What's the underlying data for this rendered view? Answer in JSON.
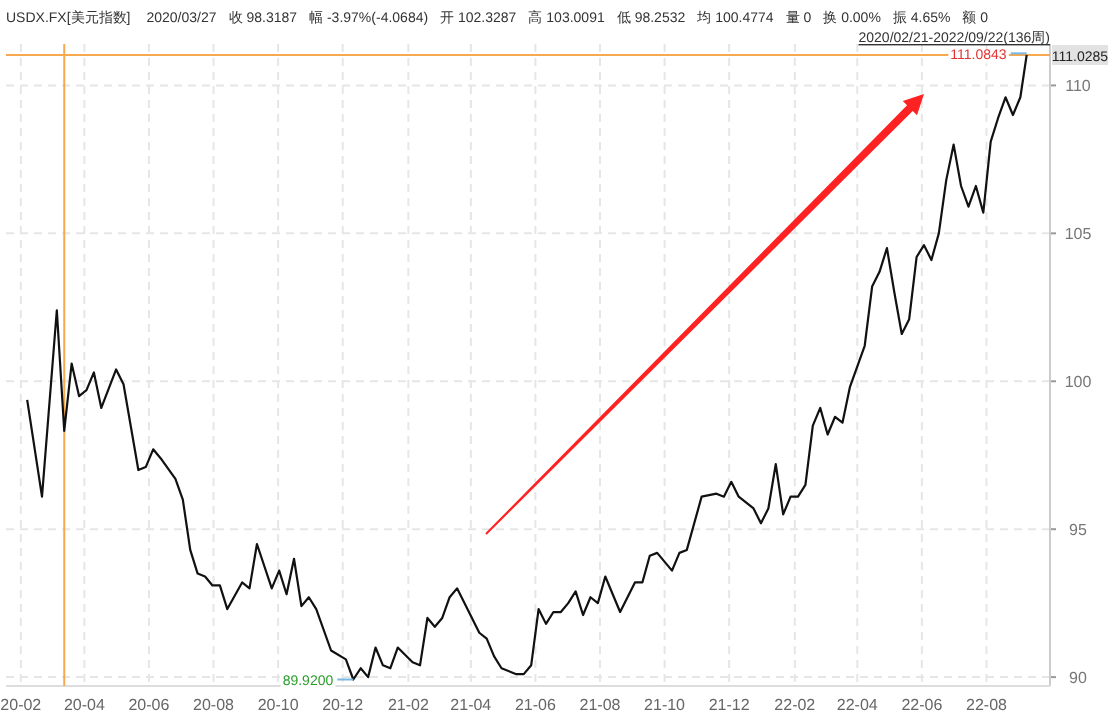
{
  "chart_data": {
    "type": "line",
    "title": "USDX.FX[美元指数]",
    "subtitle": "2020/02/21-2022/09/22(136周)",
    "annotations": [
      "2020/03/27",
      "收 98.3187",
      "幅 -3.97%(-4.0684)",
      "开 102.3287",
      "高 103.0091",
      "低 98.2532",
      "均 100.4774",
      "量 0",
      "换 0.00%",
      "振 4.65%",
      "额 0",
      {
        "text": "111.0843",
        "x": "2022-09-22",
        "y": 111.0843
      },
      {
        "text": "89.9200",
        "x": "2020-12-25",
        "y": 89.92
      }
    ],
    "series": [
      {
        "color": "#111111",
        "x": [
          "2020-02-21",
          "2020-03-06",
          "2020-03-20",
          "2020-03-27",
          "2020-04-03",
          "2020-04-10",
          "2020-04-17",
          "2020-04-24",
          "2020-05-01",
          "2020-05-15",
          "2020-05-22",
          "2020-06-05",
          "2020-06-12",
          "2020-06-19",
          "2020-06-26",
          "2020-07-10",
          "2020-07-17",
          "2020-07-24",
          "2020-07-31",
          "2020-08-07",
          "2020-08-14",
          "2020-08-21",
          "2020-08-28",
          "2020-09-11",
          "2020-09-18",
          "2020-09-25",
          "2020-10-09",
          "2020-10-16",
          "2020-10-23",
          "2020-10-30",
          "2020-11-06",
          "2020-11-13",
          "2020-11-20",
          "2020-12-04",
          "2020-12-18",
          "2020-12-25",
          "2021-01-01",
          "2021-01-08",
          "2021-01-15",
          "2021-01-22",
          "2021-01-29",
          "2021-02-05",
          "2021-02-19",
          "2021-02-26",
          "2021-03-05",
          "2021-03-12",
          "2021-03-19",
          "2021-03-26",
          "2021-04-02",
          "2021-04-23",
          "2021-04-30",
          "2021-05-07",
          "2021-05-14",
          "2021-05-28",
          "2021-06-04",
          "2021-06-11",
          "2021-06-18",
          "2021-06-25",
          "2021-07-02",
          "2021-07-09",
          "2021-07-16",
          "2021-07-23",
          "2021-07-30",
          "2021-08-06",
          "2021-08-13",
          "2021-08-20",
          "2021-09-03",
          "2021-09-17",
          "2021-09-24",
          "2021-10-01",
          "2021-10-08",
          "2021-10-22",
          "2021-10-29",
          "2021-11-05",
          "2021-11-19",
          "2021-12-03",
          "2021-12-10",
          "2021-12-17",
          "2021-12-24",
          "2022-01-07",
          "2022-01-14",
          "2022-01-21",
          "2022-01-28",
          "2022-02-04",
          "2022-02-11",
          "2022-02-18",
          "2022-02-25",
          "2022-03-04",
          "2022-03-11",
          "2022-03-18",
          "2022-03-25",
          "2022-04-01",
          "2022-04-08",
          "2022-04-22",
          "2022-04-29",
          "2022-05-06",
          "2022-05-13",
          "2022-05-20",
          "2022-05-27",
          "2022-06-03",
          "2022-06-10",
          "2022-06-17",
          "2022-06-24",
          "2022-07-01",
          "2022-07-08",
          "2022-07-15",
          "2022-07-22",
          "2022-07-29",
          "2022-08-05",
          "2022-08-12",
          "2022-08-19",
          "2022-08-26",
          "2022-09-02",
          "2022-09-09",
          "2022-09-16",
          "2022-09-22"
        ],
        "values": [
          99.37,
          96.1,
          102.4,
          98.32,
          100.6,
          99.5,
          99.7,
          100.3,
          99.1,
          100.4,
          99.9,
          97.0,
          97.1,
          97.7,
          97.4,
          96.7,
          96.0,
          94.3,
          93.5,
          93.4,
          93.1,
          93.1,
          92.3,
          93.2,
          93.0,
          94.5,
          93.0,
          93.6,
          92.8,
          94.0,
          92.4,
          92.7,
          92.3,
          90.9,
          90.6,
          89.92,
          90.3,
          90.0,
          91.0,
          90.4,
          90.3,
          91.0,
          90.5,
          90.4,
          92.0,
          91.7,
          92.0,
          92.7,
          93.0,
          91.5,
          91.3,
          90.7,
          90.3,
          90.1,
          90.1,
          90.4,
          92.3,
          91.8,
          92.2,
          92.2,
          92.5,
          92.9,
          92.1,
          92.7,
          92.5,
          93.4,
          92.2,
          93.2,
          93.2,
          94.1,
          94.2,
          93.6,
          94.2,
          94.3,
          96.1,
          96.2,
          96.1,
          96.6,
          96.1,
          95.7,
          95.2,
          95.7,
          97.2,
          95.5,
          96.1,
          96.1,
          96.5,
          98.5,
          99.1,
          98.2,
          98.8,
          98.6,
          99.8,
          101.2,
          103.2,
          103.7,
          104.5,
          103.0,
          101.6,
          102.1,
          104.2,
          104.6,
          104.1,
          105.0,
          106.8,
          108.0,
          106.6,
          105.9,
          106.6,
          105.7,
          108.1,
          108.9,
          109.6,
          109.0,
          109.6,
          111.03
        ]
      }
    ],
    "xlim": [
      "2020-02-01",
      "2022-10-14"
    ],
    "xticks": [
      {
        "value": "2020-02-15",
        "label": "20-02"
      },
      {
        "value": "2020-04-15",
        "label": "20-04"
      },
      {
        "value": "2020-06-15",
        "label": "20-06"
      },
      {
        "value": "2020-08-15",
        "label": "20-08"
      },
      {
        "value": "2020-10-15",
        "label": "20-10"
      },
      {
        "value": "2020-12-15",
        "label": "20-12"
      },
      {
        "value": "2021-02-15",
        "label": "21-02"
      },
      {
        "value": "2021-04-15",
        "label": "21-04"
      },
      {
        "value": "2021-06-15",
        "label": "21-06"
      },
      {
        "value": "2021-08-15",
        "label": "21-08"
      },
      {
        "value": "2021-10-15",
        "label": "21-10"
      },
      {
        "value": "2021-12-15",
        "label": "21-12"
      },
      {
        "value": "2022-02-15",
        "label": "22-02"
      },
      {
        "value": "2022-04-15",
        "label": "22-04"
      },
      {
        "value": "2022-06-15",
        "label": "22-06"
      },
      {
        "value": "2022-08-15",
        "label": "22-08"
      }
    ],
    "ylim": [
      89.7,
      111.4
    ],
    "yticks": [
      90,
      95,
      100,
      105,
      110
    ],
    "ref_lines": [
      {
        "axis": "x",
        "value": "2020-03-27",
        "color": "#f7a94f"
      },
      {
        "axis": "y",
        "value": 111.0285,
        "label": "111.0285",
        "color": "#f7a94f"
      }
    ],
    "grid": true,
    "marker": "none",
    "line_style": "solid"
  }
}
